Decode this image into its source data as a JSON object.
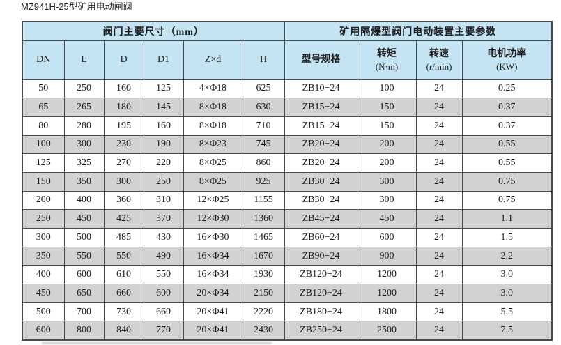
{
  "page_title": "MZ941H-25型矿用电动闸阀",
  "colors": {
    "header_bg": "#c5e4f3",
    "row_bg": "#ffffff",
    "row_alt_bg": "#d2d2d2",
    "border": "#4a4a4a",
    "text": "#1c1c1c"
  },
  "table": {
    "group_headers": [
      {
        "label": "阀门主要尺寸（mm）",
        "colspan": 6
      },
      {
        "label": "矿用隔爆型阀门电动装置主要参数",
        "colspan": 4
      }
    ],
    "columns": [
      {
        "label": "DN",
        "sub": ""
      },
      {
        "label": "L",
        "sub": ""
      },
      {
        "label": "D",
        "sub": ""
      },
      {
        "label": "D1",
        "sub": ""
      },
      {
        "label": "Z×d",
        "sub": ""
      },
      {
        "label": "H",
        "sub": ""
      },
      {
        "label": "型号规格",
        "sub": ""
      },
      {
        "label": "转矩",
        "sub": "(N·m)"
      },
      {
        "label": "转速",
        "sub": "(r/min)"
      },
      {
        "label": "电机功率",
        "sub": "(KW)"
      }
    ],
    "rows": [
      [
        "50",
        "250",
        "160",
        "125",
        "4×Φ18",
        "625",
        "ZB10−24",
        "100",
        "24",
        "0.25"
      ],
      [
        "65",
        "265",
        "180",
        "145",
        "8×Φ18",
        "630",
        "ZB15−24",
        "150",
        "24",
        "0.37"
      ],
      [
        "80",
        "280",
        "195",
        "160",
        "8×Φ18",
        "710",
        "ZB15−24",
        "150",
        "24",
        "0.37"
      ],
      [
        "100",
        "300",
        "230",
        "190",
        "8×Φ23",
        "745",
        "ZB20−24",
        "200",
        "24",
        "0.55"
      ],
      [
        "125",
        "325",
        "270",
        "220",
        "8×Φ25",
        "860",
        "ZB20−24",
        "200",
        "24",
        "0.55"
      ],
      [
        "150",
        "350",
        "300",
        "250",
        "8×Φ25",
        "925",
        "ZB30−24",
        "300",
        "24",
        "0.75"
      ],
      [
        "200",
        "400",
        "360",
        "310",
        "12×Φ25",
        "1155",
        "ZB30−24",
        "300",
        "24",
        "0.75"
      ],
      [
        "250",
        "450",
        "425",
        "370",
        "12×Φ30",
        "1360",
        "ZB45−24",
        "450",
        "24",
        "1.1"
      ],
      [
        "300",
        "500",
        "485",
        "430",
        "16×Φ30",
        "1465",
        "ZB60−24",
        "600",
        "24",
        "1.5"
      ],
      [
        "350",
        "550",
        "550",
        "490",
        "16×Φ34",
        "1670",
        "ZB90−24",
        "900",
        "24",
        "2.2"
      ],
      [
        "400",
        "600",
        "610",
        "550",
        "16×Φ34",
        "1930",
        "ZB120−24",
        "1200",
        "24",
        "3.0"
      ],
      [
        "450",
        "650",
        "660",
        "600",
        "20×Φ34",
        "2150",
        "ZB120−24",
        "1200",
        "24",
        "3.0"
      ],
      [
        "500",
        "700",
        "730",
        "660",
        "20×Φ41",
        "2220",
        "ZB180−24",
        "1800",
        "24",
        "5.5"
      ],
      [
        "600",
        "800",
        "840",
        "770",
        "20×Φ41",
        "2430",
        "ZB250−24",
        "2500",
        "24",
        "7.5"
      ]
    ]
  }
}
